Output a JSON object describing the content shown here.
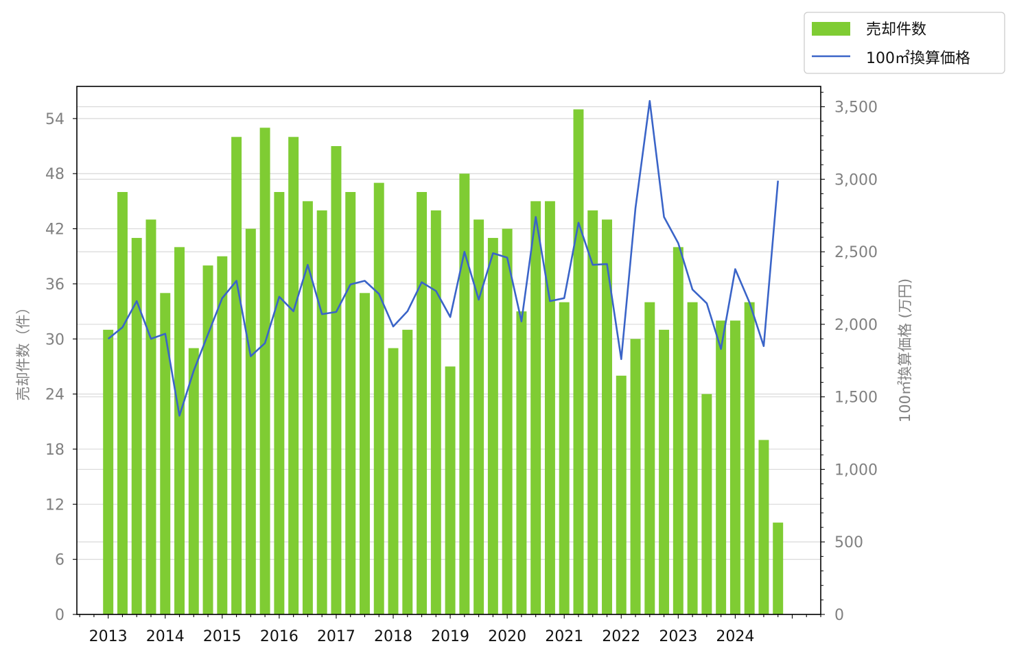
{
  "chart_data": {
    "type": "bar+line",
    "legend": {
      "placement": "top-right",
      "entries": [
        "売却件数",
        "100㎡換算価格"
      ]
    },
    "x_tick_labels": [
      "2013",
      "2014",
      "2015",
      "2016",
      "2017",
      "2018",
      "2019",
      "2020",
      "2021",
      "2022",
      "2023",
      "2024"
    ],
    "y_left": {
      "label": "売却件数（件）",
      "ticks": [
        "0",
        "6",
        "12",
        "18",
        "24",
        "30",
        "36",
        "42",
        "48",
        "54"
      ],
      "range": [
        0,
        57.5
      ]
    },
    "y_right": {
      "label": "100㎡換算価格 (万円)",
      "ticks": [
        "0",
        "500",
        "1,000",
        "1,500",
        "2,000",
        "2,500",
        "3,000",
        "3,500"
      ],
      "range": [
        0,
        3640
      ]
    },
    "x_range": [
      2012.45,
      2025.5
    ],
    "x": [
      2013.0,
      2013.25,
      2013.5,
      2013.75,
      2014.0,
      2014.25,
      2014.5,
      2014.75,
      2015.0,
      2015.25,
      2015.5,
      2015.75,
      2016.0,
      2016.25,
      2016.5,
      2016.75,
      2017.0,
      2017.25,
      2017.5,
      2017.75,
      2018.0,
      2018.25,
      2018.5,
      2018.75,
      2019.0,
      2019.25,
      2019.5,
      2019.75,
      2020.0,
      2020.25,
      2020.5,
      2020.75,
      2021.0,
      2021.25,
      2021.5,
      2021.75,
      2022.0,
      2022.25,
      2022.5,
      2022.75,
      2023.0,
      2023.25,
      2023.5,
      2023.75,
      2024.0,
      2024.25,
      2024.5,
      2024.75
    ],
    "series": [
      {
        "name": "売却件数",
        "kind": "bar",
        "axis": "left",
        "color": "#7fcc33",
        "values": [
          31,
          46,
          41,
          43,
          35,
          40,
          29,
          38,
          39,
          52,
          42,
          53,
          46,
          52,
          45,
          44,
          51,
          46,
          35,
          47,
          29,
          31,
          46,
          44,
          27,
          48,
          43,
          41,
          42,
          33,
          45,
          45,
          34,
          55,
          44,
          43,
          26,
          30,
          34,
          31,
          40,
          34,
          24,
          32,
          32,
          34,
          19,
          10
        ]
      },
      {
        "name": "100㎡換算価格",
        "kind": "line",
        "axis": "right",
        "color": "#3a64c8",
        "values": [
          1900,
          1980,
          2160,
          1900,
          1935,
          1370,
          1680,
          1930,
          2180,
          2300,
          1780,
          1870,
          2190,
          2090,
          2410,
          2070,
          2085,
          2275,
          2300,
          2210,
          1985,
          2090,
          2290,
          2230,
          2050,
          2500,
          2170,
          2490,
          2460,
          2020,
          2740,
          2160,
          2180,
          2700,
          2410,
          2415,
          1760,
          2800,
          3540,
          2740,
          2560,
          2240,
          2145,
          1830,
          2380,
          2150,
          1850,
          2990
        ]
      }
    ]
  }
}
